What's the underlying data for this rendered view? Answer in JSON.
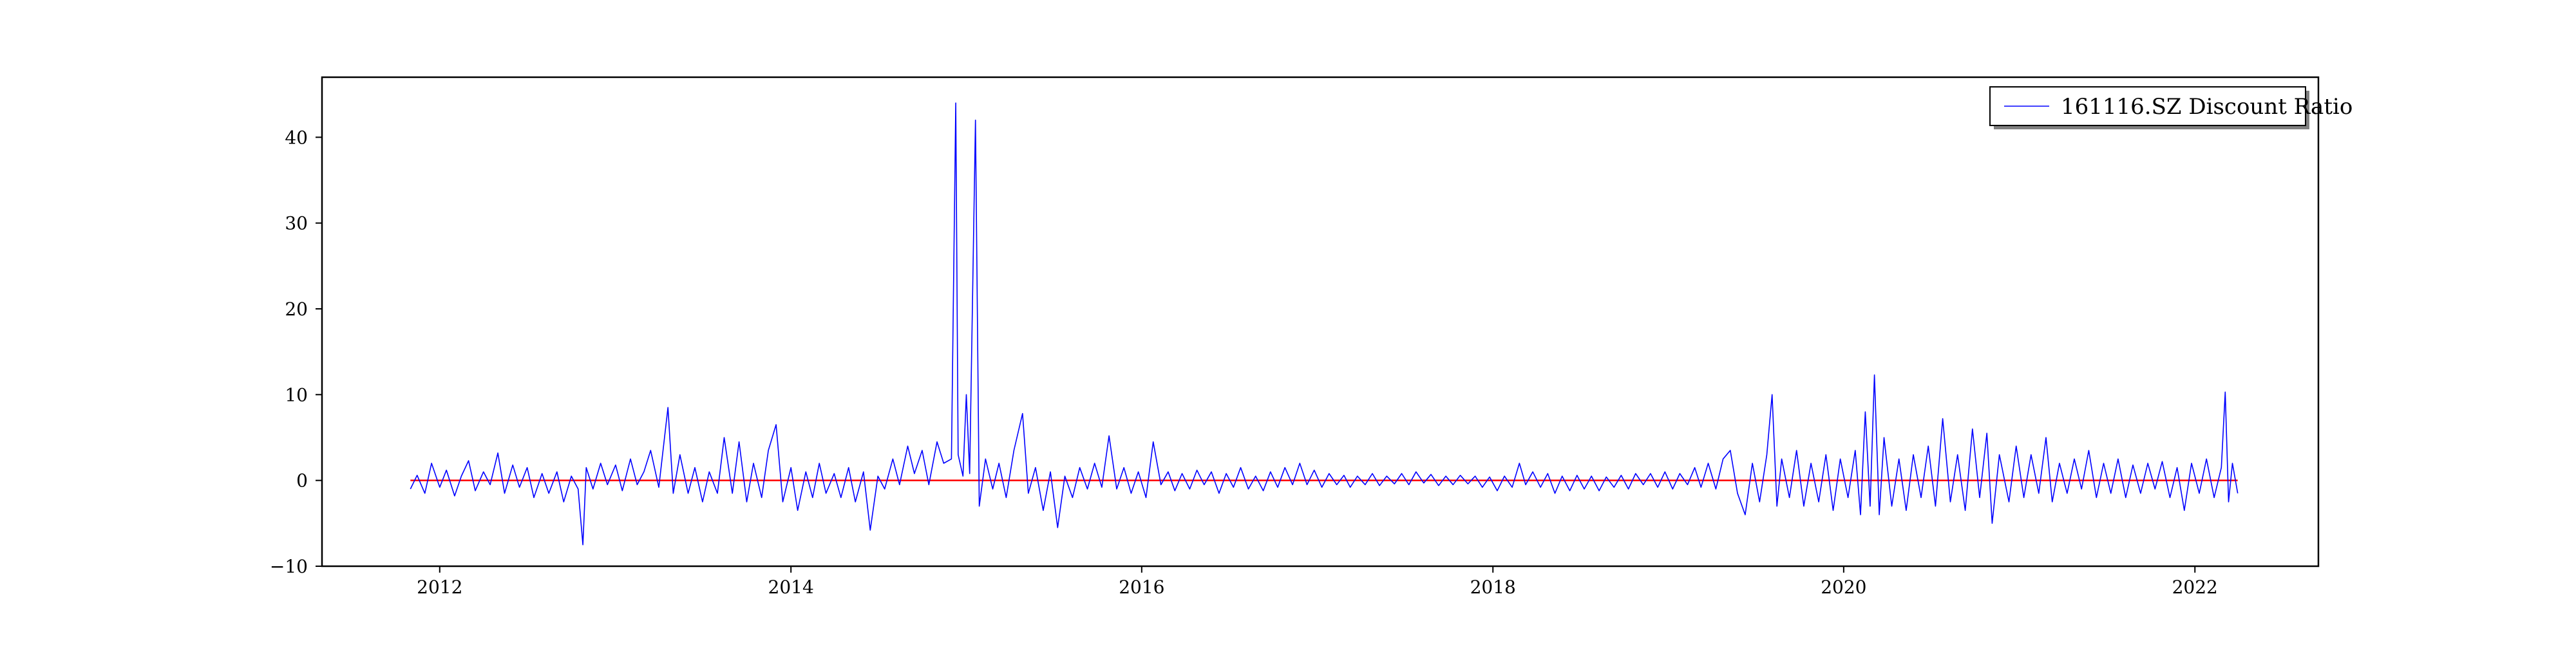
{
  "chart_data": {
    "type": "line",
    "title": "",
    "xlabel": "",
    "ylabel": "",
    "xlim": [
      "2011-05-01",
      "2022-09-15"
    ],
    "ylim": [
      -10,
      47
    ],
    "x_ticks": [
      "2012",
      "2014",
      "2016",
      "2018",
      "2020",
      "2022"
    ],
    "y_ticks": [
      "−10",
      "0",
      "10",
      "20",
      "30",
      "40"
    ],
    "y_tick_values": [
      -10,
      0,
      10,
      20,
      30,
      40
    ],
    "legend": {
      "position": "top-right",
      "entries": [
        "161116.SZ Discount Ratio"
      ]
    },
    "grid": false,
    "reference_line": {
      "y": 0,
      "color": "#ff0000"
    },
    "series": [
      {
        "name": "161116.SZ Discount Ratio",
        "color": "#0000ff",
        "points": [
          [
            "2011-11-01",
            -1.0
          ],
          [
            "2011-11-15",
            0.6
          ],
          [
            "2011-12-01",
            -1.5
          ],
          [
            "2011-12-15",
            2.0
          ],
          [
            "2012-01-01",
            -0.8
          ],
          [
            "2012-01-15",
            1.2
          ],
          [
            "2012-02-01",
            -1.8
          ],
          [
            "2012-02-15",
            0.5
          ],
          [
            "2012-03-01",
            2.3
          ],
          [
            "2012-03-15",
            -1.2
          ],
          [
            "2012-04-01",
            1.0
          ],
          [
            "2012-04-15",
            -0.5
          ],
          [
            "2012-05-01",
            3.2
          ],
          [
            "2012-05-15",
            -1.5
          ],
          [
            "2012-06-01",
            1.8
          ],
          [
            "2012-06-15",
            -0.8
          ],
          [
            "2012-07-01",
            1.5
          ],
          [
            "2012-07-15",
            -2.0
          ],
          [
            "2012-08-01",
            0.8
          ],
          [
            "2012-08-15",
            -1.5
          ],
          [
            "2012-09-01",
            1.0
          ],
          [
            "2012-09-15",
            -2.5
          ],
          [
            "2012-10-01",
            0.5
          ],
          [
            "2012-10-15",
            -1.0
          ],
          [
            "2012-10-25",
            -7.5
          ],
          [
            "2012-11-01",
            1.5
          ],
          [
            "2012-11-15",
            -1.0
          ],
          [
            "2012-12-01",
            2.0
          ],
          [
            "2012-12-15",
            -0.5
          ],
          [
            "2013-01-01",
            1.8
          ],
          [
            "2013-01-15",
            -1.2
          ],
          [
            "2013-02-01",
            2.5
          ],
          [
            "2013-02-15",
            -0.5
          ],
          [
            "2013-03-01",
            1.0
          ],
          [
            "2013-03-15",
            3.5
          ],
          [
            "2013-04-01",
            -0.8
          ],
          [
            "2013-04-20",
            8.5
          ],
          [
            "2013-05-01",
            -1.5
          ],
          [
            "2013-05-15",
            3.0
          ],
          [
            "2013-06-01",
            -1.5
          ],
          [
            "2013-06-15",
            1.5
          ],
          [
            "2013-07-01",
            -2.5
          ],
          [
            "2013-07-15",
            1.0
          ],
          [
            "2013-08-01",
            -1.5
          ],
          [
            "2013-08-15",
            5.0
          ],
          [
            "2013-09-01",
            -1.5
          ],
          [
            "2013-09-15",
            4.5
          ],
          [
            "2013-10-01",
            -2.5
          ],
          [
            "2013-10-15",
            2.0
          ],
          [
            "2013-11-01",
            -2.0
          ],
          [
            "2013-11-15",
            3.5
          ],
          [
            "2013-12-01",
            6.5
          ],
          [
            "2013-12-15",
            -2.5
          ],
          [
            "2014-01-01",
            1.5
          ],
          [
            "2014-01-15",
            -3.5
          ],
          [
            "2014-02-01",
            1.0
          ],
          [
            "2014-02-15",
            -2.0
          ],
          [
            "2014-03-01",
            2.0
          ],
          [
            "2014-03-15",
            -1.5
          ],
          [
            "2014-04-01",
            0.8
          ],
          [
            "2014-04-15",
            -2.0
          ],
          [
            "2014-05-01",
            1.5
          ],
          [
            "2014-05-15",
            -2.5
          ],
          [
            "2014-06-01",
            1.0
          ],
          [
            "2014-06-15",
            -5.8
          ],
          [
            "2014-07-01",
            0.5
          ],
          [
            "2014-07-15",
            -1.0
          ],
          [
            "2014-08-01",
            2.5
          ],
          [
            "2014-08-15",
            -0.5
          ],
          [
            "2014-09-01",
            4.0
          ],
          [
            "2014-09-15",
            0.8
          ],
          [
            "2014-10-01",
            3.5
          ],
          [
            "2014-10-15",
            -0.5
          ],
          [
            "2014-11-01",
            4.5
          ],
          [
            "2014-11-15",
            2.0
          ],
          [
            "2014-12-01",
            2.5
          ],
          [
            "2014-12-10",
            44.0
          ],
          [
            "2014-12-15",
            3.0
          ],
          [
            "2014-12-25",
            0.5
          ],
          [
            "2015-01-01",
            10.0
          ],
          [
            "2015-01-08",
            0.8
          ],
          [
            "2015-01-20",
            42.0
          ],
          [
            "2015-01-28",
            -3.0
          ],
          [
            "2015-02-10",
            2.5
          ],
          [
            "2015-02-25",
            -1.0
          ],
          [
            "2015-03-10",
            2.0
          ],
          [
            "2015-03-25",
            -2.0
          ],
          [
            "2015-04-10",
            3.5
          ],
          [
            "2015-04-28",
            7.8
          ],
          [
            "2015-05-10",
            -1.5
          ],
          [
            "2015-05-25",
            1.5
          ],
          [
            "2015-06-10",
            -3.5
          ],
          [
            "2015-06-25",
            1.0
          ],
          [
            "2015-07-10",
            -5.5
          ],
          [
            "2015-07-25",
            0.5
          ],
          [
            "2015-08-10",
            -2.0
          ],
          [
            "2015-08-25",
            1.5
          ],
          [
            "2015-09-10",
            -1.0
          ],
          [
            "2015-09-25",
            2.0
          ],
          [
            "2015-10-10",
            -0.8
          ],
          [
            "2015-10-25",
            5.2
          ],
          [
            "2015-11-10",
            -1.0
          ],
          [
            "2015-11-25",
            1.5
          ],
          [
            "2015-12-10",
            -1.5
          ],
          [
            "2015-12-25",
            1.0
          ],
          [
            "2016-01-10",
            -2.0
          ],
          [
            "2016-01-25",
            4.5
          ],
          [
            "2016-02-10",
            -0.5
          ],
          [
            "2016-02-25",
            1.0
          ],
          [
            "2016-03-10",
            -1.2
          ],
          [
            "2016-03-25",
            0.8
          ],
          [
            "2016-04-10",
            -1.0
          ],
          [
            "2016-04-25",
            1.2
          ],
          [
            "2016-05-10",
            -0.5
          ],
          [
            "2016-05-25",
            1.0
          ],
          [
            "2016-06-10",
            -1.5
          ],
          [
            "2016-06-25",
            0.8
          ],
          [
            "2016-07-10",
            -0.8
          ],
          [
            "2016-07-25",
            1.5
          ],
          [
            "2016-08-10",
            -1.0
          ],
          [
            "2016-08-25",
            0.5
          ],
          [
            "2016-09-10",
            -1.2
          ],
          [
            "2016-09-25",
            1.0
          ],
          [
            "2016-10-10",
            -0.8
          ],
          [
            "2016-10-25",
            1.5
          ],
          [
            "2016-11-10",
            -0.5
          ],
          [
            "2016-11-25",
            2.0
          ],
          [
            "2016-12-10",
            -0.5
          ],
          [
            "2016-12-25",
            1.2
          ],
          [
            "2017-01-10",
            -0.8
          ],
          [
            "2017-01-25",
            0.8
          ],
          [
            "2017-02-10",
            -0.5
          ],
          [
            "2017-02-25",
            0.6
          ],
          [
            "2017-03-10",
            -0.8
          ],
          [
            "2017-03-25",
            0.5
          ],
          [
            "2017-04-10",
            -0.5
          ],
          [
            "2017-04-25",
            0.8
          ],
          [
            "2017-05-10",
            -0.6
          ],
          [
            "2017-05-25",
            0.5
          ],
          [
            "2017-06-10",
            -0.4
          ],
          [
            "2017-06-25",
            0.8
          ],
          [
            "2017-07-10",
            -0.5
          ],
          [
            "2017-07-25",
            1.0
          ],
          [
            "2017-08-10",
            -0.3
          ],
          [
            "2017-08-25",
            0.7
          ],
          [
            "2017-09-10",
            -0.6
          ],
          [
            "2017-09-25",
            0.5
          ],
          [
            "2017-10-10",
            -0.5
          ],
          [
            "2017-10-25",
            0.6
          ],
          [
            "2017-11-10",
            -0.4
          ],
          [
            "2017-11-25",
            0.5
          ],
          [
            "2017-12-10",
            -0.8
          ],
          [
            "2017-12-25",
            0.4
          ],
          [
            "2018-01-10",
            -1.2
          ],
          [
            "2018-01-25",
            0.5
          ],
          [
            "2018-02-10",
            -0.8
          ],
          [
            "2018-02-25",
            2.0
          ],
          [
            "2018-03-10",
            -0.5
          ],
          [
            "2018-03-25",
            1.0
          ],
          [
            "2018-04-10",
            -0.8
          ],
          [
            "2018-04-25",
            0.8
          ],
          [
            "2018-05-10",
            -1.5
          ],
          [
            "2018-05-25",
            0.5
          ],
          [
            "2018-06-10",
            -1.2
          ],
          [
            "2018-06-25",
            0.6
          ],
          [
            "2018-07-10",
            -1.0
          ],
          [
            "2018-07-25",
            0.5
          ],
          [
            "2018-08-10",
            -1.2
          ],
          [
            "2018-08-25",
            0.4
          ],
          [
            "2018-09-10",
            -0.8
          ],
          [
            "2018-09-25",
            0.6
          ],
          [
            "2018-10-10",
            -1.0
          ],
          [
            "2018-10-25",
            0.8
          ],
          [
            "2018-11-10",
            -0.5
          ],
          [
            "2018-11-25",
            0.8
          ],
          [
            "2018-12-10",
            -0.8
          ],
          [
            "2018-12-25",
            1.0
          ],
          [
            "2019-01-10",
            -1.0
          ],
          [
            "2019-01-25",
            0.8
          ],
          [
            "2019-02-10",
            -0.5
          ],
          [
            "2019-02-25",
            1.5
          ],
          [
            "2019-03-10",
            -0.8
          ],
          [
            "2019-03-25",
            2.0
          ],
          [
            "2019-04-10",
            -1.0
          ],
          [
            "2019-04-25",
            2.5
          ],
          [
            "2019-05-10",
            3.5
          ],
          [
            "2019-05-25",
            -1.5
          ],
          [
            "2019-06-10",
            -4.0
          ],
          [
            "2019-06-25",
            2.0
          ],
          [
            "2019-07-10",
            -2.5
          ],
          [
            "2019-07-25",
            3.0
          ],
          [
            "2019-08-05",
            10.0
          ],
          [
            "2019-08-15",
            -3.0
          ],
          [
            "2019-08-25",
            2.5
          ],
          [
            "2019-09-10",
            -2.0
          ],
          [
            "2019-09-25",
            3.5
          ],
          [
            "2019-10-10",
            -3.0
          ],
          [
            "2019-10-25",
            2.0
          ],
          [
            "2019-11-10",
            -2.5
          ],
          [
            "2019-11-25",
            3.0
          ],
          [
            "2019-12-10",
            -3.5
          ],
          [
            "2019-12-25",
            2.5
          ],
          [
            "2020-01-10",
            -2.0
          ],
          [
            "2020-01-25",
            3.5
          ],
          [
            "2020-02-05",
            -4.0
          ],
          [
            "2020-02-15",
            8.0
          ],
          [
            "2020-02-25",
            -3.0
          ],
          [
            "2020-03-05",
            12.3
          ],
          [
            "2020-03-15",
            -4.0
          ],
          [
            "2020-03-25",
            5.0
          ],
          [
            "2020-04-10",
            -3.0
          ],
          [
            "2020-04-25",
            2.5
          ],
          [
            "2020-05-10",
            -3.5
          ],
          [
            "2020-05-25",
            3.0
          ],
          [
            "2020-06-10",
            -2.0
          ],
          [
            "2020-06-25",
            4.0
          ],
          [
            "2020-07-10",
            -3.0
          ],
          [
            "2020-07-25",
            7.2
          ],
          [
            "2020-08-10",
            -2.5
          ],
          [
            "2020-08-25",
            3.0
          ],
          [
            "2020-09-10",
            -3.5
          ],
          [
            "2020-09-25",
            6.0
          ],
          [
            "2020-10-10",
            -2.0
          ],
          [
            "2020-10-25",
            5.5
          ],
          [
            "2020-11-05",
            -5.0
          ],
          [
            "2020-11-20",
            3.0
          ],
          [
            "2020-12-10",
            -2.5
          ],
          [
            "2020-12-25",
            4.0
          ],
          [
            "2021-01-10",
            -2.0
          ],
          [
            "2021-01-25",
            3.0
          ],
          [
            "2021-02-10",
            -1.5
          ],
          [
            "2021-02-25",
            5.0
          ],
          [
            "2021-03-10",
            -2.5
          ],
          [
            "2021-03-25",
            2.0
          ],
          [
            "2021-04-10",
            -1.5
          ],
          [
            "2021-04-25",
            2.5
          ],
          [
            "2021-05-10",
            -1.0
          ],
          [
            "2021-05-25",
            3.5
          ],
          [
            "2021-06-10",
            -2.0
          ],
          [
            "2021-06-25",
            2.0
          ],
          [
            "2021-07-10",
            -1.5
          ],
          [
            "2021-07-25",
            2.5
          ],
          [
            "2021-08-10",
            -2.0
          ],
          [
            "2021-08-25",
            1.8
          ],
          [
            "2021-09-10",
            -1.5
          ],
          [
            "2021-09-25",
            2.0
          ],
          [
            "2021-10-10",
            -1.0
          ],
          [
            "2021-10-25",
            2.2
          ],
          [
            "2021-11-10",
            -2.0
          ],
          [
            "2021-11-25",
            1.5
          ],
          [
            "2021-12-10",
            -3.5
          ],
          [
            "2021-12-25",
            2.0
          ],
          [
            "2022-01-10",
            -1.5
          ],
          [
            "2022-01-25",
            2.5
          ],
          [
            "2022-02-10",
            -2.0
          ],
          [
            "2022-02-25",
            1.5
          ],
          [
            "2022-03-05",
            10.3
          ],
          [
            "2022-03-12",
            -2.5
          ],
          [
            "2022-03-20",
            2.0
          ],
          [
            "2022-03-31",
            -1.5
          ]
        ]
      }
    ]
  }
}
